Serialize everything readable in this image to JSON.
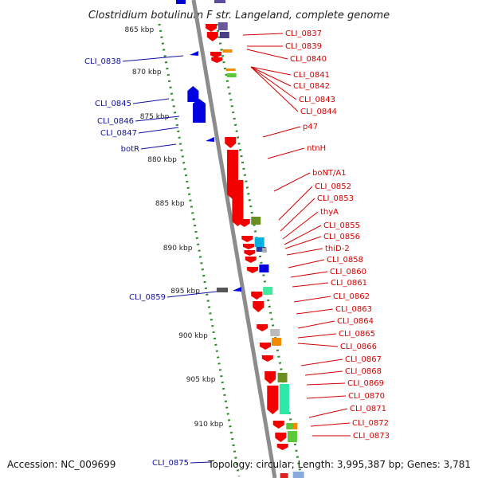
{
  "title": "Clostridium botulinum F str. Langeland, complete genome",
  "footer": {
    "accession": "Accession: NC_009699",
    "topology": "Topology: circular; Length: 3,995,387 bp; Genes: 3,781"
  },
  "colors": {
    "backbone": "#8c8c8c",
    "tick": "#2a8a2a",
    "right_label": "#d40000",
    "left_label": "#1010a0",
    "connector_right": "#d40000",
    "connector_left": "#1010a0"
  },
  "scale": {
    "ticks": [
      "865 kbp",
      "870 kbp",
      "875 kbp",
      "880 kbp",
      "885 kbp",
      "890 kbp",
      "895 kbp",
      "900 kbp",
      "905 kbp",
      "910 kbp"
    ]
  },
  "right_labels": [
    "CLI_0837",
    "CLI_0839",
    "CLI_0840",
    "CLI_0841",
    "CLI_0842",
    "CLI_0843",
    "CLI_0844",
    "p47",
    "ntnH",
    "boNT/A1",
    "CLI_0852",
    "CLI_0853",
    "thyA",
    "CLI_0855",
    "CLI_0856",
    "thiD-2",
    "CLI_0858",
    "CLI_0860",
    "CLI_0861",
    "CLI_0862",
    "CLI_0863",
    "CLI_0864",
    "CLI_0865",
    "CLI_0866",
    "CLI_0867",
    "CLI_0868",
    "CLI_0869",
    "CLI_0870",
    "CLI_0871",
    "CLI_0872",
    "CLI_0873"
  ],
  "left_labels": [
    "CLI_0838",
    "CLI_0845",
    "CLI_0846",
    "CLI_0847",
    "botR",
    "CLI_0859",
    "CLI_0875"
  ]
}
